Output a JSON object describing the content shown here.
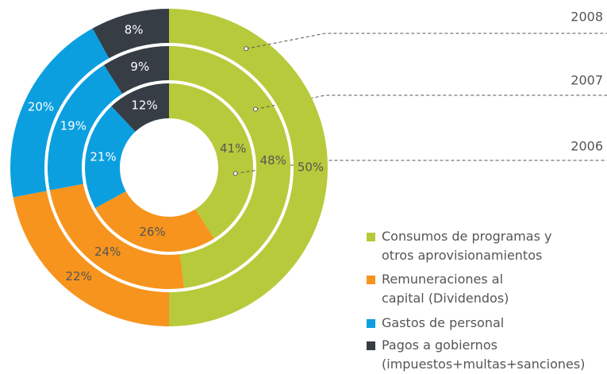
{
  "chart_data": {
    "type": "donut",
    "categories": [
      "Consumos de programas y otros aprovisionamientos",
      "Remuneraciones al capital (Dividendos)",
      "Gastos de personal",
      "Pagos a gobiernos (impuestos+multas+sanciones)"
    ],
    "colors": [
      "#b7ca3b",
      "#f7941d",
      "#0b9fe0",
      "#363d45"
    ],
    "series": [
      {
        "name": "2006",
        "values": [
          41,
          26,
          21,
          12
        ],
        "value_labels": [
          "41%",
          "26%",
          "21%",
          "12%"
        ]
      },
      {
        "name": "2007",
        "values": [
          48,
          24,
          19,
          9
        ],
        "value_labels": [
          "48%",
          "24%",
          "19%",
          "9%"
        ]
      },
      {
        "name": "2008",
        "values": [
          50,
          22,
          20,
          8
        ],
        "value_labels": [
          "50%",
          "22%",
          "20%",
          "8%"
        ]
      }
    ]
  }
}
